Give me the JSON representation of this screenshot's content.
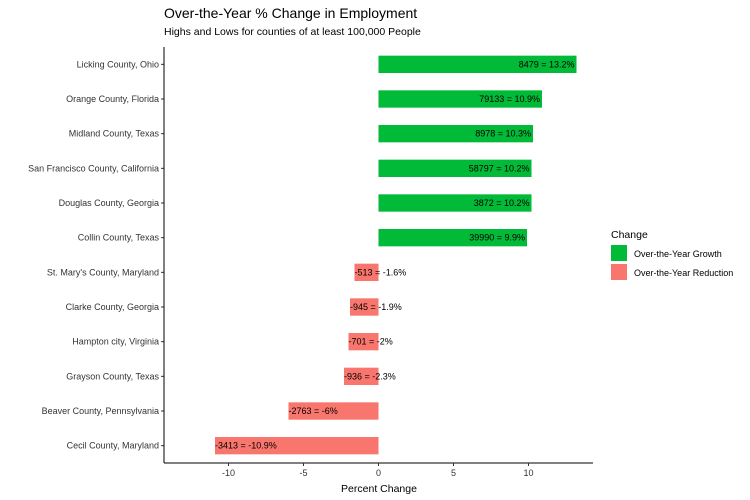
{
  "chart_data": {
    "type": "bar",
    "orientation": "horizontal",
    "title": "Over-the-Year % Change in Employment",
    "subtitle": "Highs and Lows for counties of at least 100,000 People",
    "xlabel": "Percent Change",
    "ylabel": "",
    "xlim": [
      -14.3,
      14.3
    ],
    "x_ticks": [
      -10,
      -5,
      0,
      5,
      10
    ],
    "x_tick_labels": [
      "-10",
      "-5",
      "0",
      "5",
      "10"
    ],
    "grid": false,
    "legend": {
      "title": "Change",
      "position": "right",
      "entries": [
        {
          "label": "Over-the-Year Growth",
          "color": "#00BA38"
        },
        {
          "label": "Over-the-Year Reduction",
          "color": "#F8766D"
        }
      ]
    },
    "categories": [
      "Licking County, Ohio",
      "Orange County, Florida",
      "Midland County, Texas",
      "San Francisco County, California",
      "Douglas County, Georgia",
      "Collin County, Texas",
      "St. Mary's County, Maryland",
      "Clarke County, Georgia",
      "Hampton city, Virginia",
      "Grayson County, Texas",
      "Beaver County, Pennsylvania",
      "Cecil County, Maryland"
    ],
    "values": [
      13.2,
      10.9,
      10.3,
      10.2,
      10.2,
      9.9,
      -1.6,
      -1.9,
      -2,
      -2.3,
      -6,
      -10.9
    ],
    "labels": [
      "8479 = 13.2%",
      "79133 = 10.9%",
      "8978 = 10.3%",
      "58797 = 10.2%",
      "3872 = 10.2%",
      "39990 = 9.9%",
      "-513 = -1.6%",
      "-945 = -1.9%",
      "-701 = -2%",
      "-936 = -2.3%",
      "-2763 = -6%",
      "-3413 = -10.9%"
    ]
  }
}
